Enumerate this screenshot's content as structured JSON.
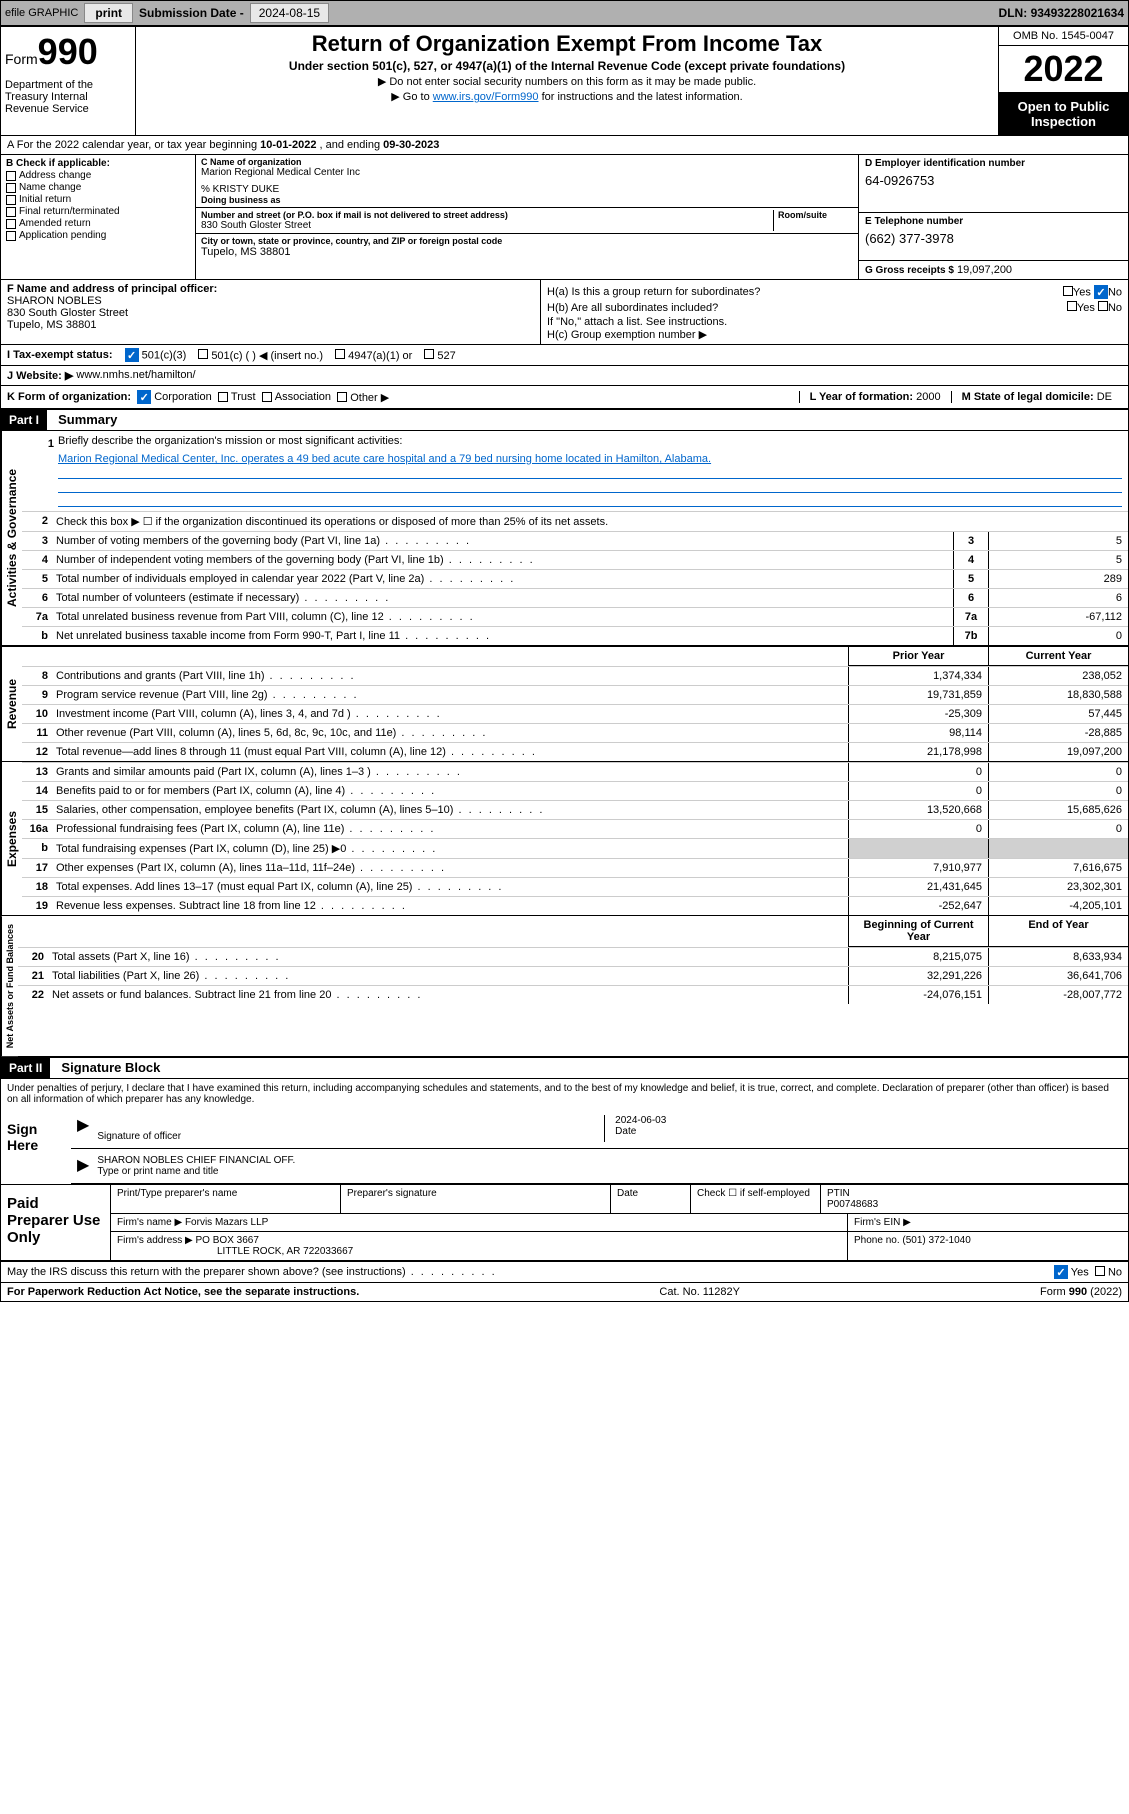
{
  "topbar": {
    "efile_label": "efile GRAPHIC",
    "print_btn": "print",
    "submission_label": "Submission Date -",
    "submission_date": "2024-08-15",
    "dln_label": "DLN:",
    "dln": "93493228021634"
  },
  "header": {
    "form_label": "Form",
    "form_num": "990",
    "dept": "Department of the Treasury Internal Revenue Service",
    "title": "Return of Organization Exempt From Income Tax",
    "subtitle": "Under section 501(c), 527, or 4947(a)(1) of the Internal Revenue Code (except private foundations)",
    "note1": "▶ Do not enter social security numbers on this form as it may be made public.",
    "note2_pre": "▶ Go to ",
    "note2_link": "www.irs.gov/Form990",
    "note2_post": " for instructions and the latest information.",
    "omb": "OMB No. 1545-0047",
    "year": "2022",
    "open_public": "Open to Public Inspection"
  },
  "row_a": {
    "text_pre": "A For the 2022 calendar year, or tax year beginning ",
    "begin": "10-01-2022",
    "mid": " , and ending ",
    "end": "09-30-2023"
  },
  "section_b": {
    "b_label": "B Check if applicable:",
    "checks": [
      "Address change",
      "Name change",
      "Initial return",
      "Final return/terminated",
      "Amended return",
      "Application pending"
    ],
    "c_label": "C Name of organization",
    "org_name": "Marion Regional Medical Center Inc",
    "care_of_label": "% KRISTY DUKE",
    "dba_label": "Doing business as",
    "addr_label": "Number and street (or P.O. box if mail is not delivered to street address)",
    "room_label": "Room/suite",
    "street": "830 South Gloster Street",
    "city_label": "City or town, state or province, country, and ZIP or foreign postal code",
    "city": "Tupelo, MS  38801",
    "d_label": "D Employer identification number",
    "ein": "64-0926753",
    "e_label": "E Telephone number",
    "phone": "(662) 377-3978",
    "g_label": "G Gross receipts $",
    "gross": "19,097,200"
  },
  "row_f": {
    "f_label": "F Name and address of principal officer:",
    "officer_name": "SHARON NOBLES",
    "officer_addr1": "830 South Gloster Street",
    "officer_addr2": "Tupelo, MS  38801",
    "ha_label": "H(a)  Is this a group return for subordinates?",
    "hb_label": "H(b)  Are all subordinates included?",
    "hb_note": "If \"No,\" attach a list. See instructions.",
    "hc_label": "H(c)  Group exemption number ▶",
    "yes": "Yes",
    "no": "No"
  },
  "row_i": {
    "label": "I  Tax-exempt status:",
    "opt1": "501(c)(3)",
    "opt2": "501(c) (  ) ◀ (insert no.)",
    "opt3": "4947(a)(1) or",
    "opt4": "527"
  },
  "row_j": {
    "label": "J  Website: ▶",
    "value": "www.nmhs.net/hamilton/"
  },
  "row_k": {
    "label": "K Form of organization:",
    "opts": [
      "Corporation",
      "Trust",
      "Association",
      "Other ▶"
    ],
    "l_label": "L Year of formation:",
    "l_val": "2000",
    "m_label": "M State of legal domicile:",
    "m_val": "DE"
  },
  "part1": {
    "header": "Part I",
    "title": "Summary",
    "line1_label": "Briefly describe the organization's mission or most significant activities:",
    "mission": "Marion Regional Medical Center, Inc. operates a 49 bed acute care hospital and a 79 bed nursing home located in Hamilton, Alabama.",
    "line2": "Check this box ▶ ☐ if the organization discontinued its operations or disposed of more than 25% of its net assets.",
    "governance_label": "Activities & Governance",
    "revenue_label": "Revenue",
    "expenses_label": "Expenses",
    "netassets_label": "Net Assets or Fund Balances",
    "prior_year": "Prior Year",
    "current_year": "Current Year",
    "begin_year": "Beginning of Current Year",
    "end_year": "End of Year",
    "lines_gov": [
      {
        "n": "3",
        "d": "Number of voting members of the governing body (Part VI, line 1a)",
        "box": "3",
        "v": "5"
      },
      {
        "n": "4",
        "d": "Number of independent voting members of the governing body (Part VI, line 1b)",
        "box": "4",
        "v": "5"
      },
      {
        "n": "5",
        "d": "Total number of individuals employed in calendar year 2022 (Part V, line 2a)",
        "box": "5",
        "v": "289"
      },
      {
        "n": "6",
        "d": "Total number of volunteers (estimate if necessary)",
        "box": "6",
        "v": "6"
      },
      {
        "n": "7a",
        "d": "Total unrelated business revenue from Part VIII, column (C), line 12",
        "box": "7a",
        "v": "-67,112"
      },
      {
        "n": "b",
        "d": "Net unrelated business taxable income from Form 990-T, Part I, line 11",
        "box": "7b",
        "v": "0"
      }
    ],
    "lines_rev": [
      {
        "n": "8",
        "d": "Contributions and grants (Part VIII, line 1h)",
        "p": "1,374,334",
        "c": "238,052"
      },
      {
        "n": "9",
        "d": "Program service revenue (Part VIII, line 2g)",
        "p": "19,731,859",
        "c": "18,830,588"
      },
      {
        "n": "10",
        "d": "Investment income (Part VIII, column (A), lines 3, 4, and 7d )",
        "p": "-25,309",
        "c": "57,445"
      },
      {
        "n": "11",
        "d": "Other revenue (Part VIII, column (A), lines 5, 6d, 8c, 9c, 10c, and 11e)",
        "p": "98,114",
        "c": "-28,885"
      },
      {
        "n": "12",
        "d": "Total revenue—add lines 8 through 11 (must equal Part VIII, column (A), line 12)",
        "p": "21,178,998",
        "c": "19,097,200"
      }
    ],
    "lines_exp": [
      {
        "n": "13",
        "d": "Grants and similar amounts paid (Part IX, column (A), lines 1–3 )",
        "p": "0",
        "c": "0"
      },
      {
        "n": "14",
        "d": "Benefits paid to or for members (Part IX, column (A), line 4)",
        "p": "0",
        "c": "0"
      },
      {
        "n": "15",
        "d": "Salaries, other compensation, employee benefits (Part IX, column (A), lines 5–10)",
        "p": "13,520,668",
        "c": "15,685,626"
      },
      {
        "n": "16a",
        "d": "Professional fundraising fees (Part IX, column (A), line 11e)",
        "p": "0",
        "c": "0"
      },
      {
        "n": "b",
        "d": "Total fundraising expenses (Part IX, column (D), line 25) ▶0",
        "p": "",
        "c": "",
        "shaded": true
      },
      {
        "n": "17",
        "d": "Other expenses (Part IX, column (A), lines 11a–11d, 11f–24e)",
        "p": "7,910,977",
        "c": "7,616,675"
      },
      {
        "n": "18",
        "d": "Total expenses. Add lines 13–17 (must equal Part IX, column (A), line 25)",
        "p": "21,431,645",
        "c": "23,302,301"
      },
      {
        "n": "19",
        "d": "Revenue less expenses. Subtract line 18 from line 12",
        "p": "-252,647",
        "c": "-4,205,101"
      }
    ],
    "lines_net": [
      {
        "n": "20",
        "d": "Total assets (Part X, line 16)",
        "p": "8,215,075",
        "c": "8,633,934"
      },
      {
        "n": "21",
        "d": "Total liabilities (Part X, line 26)",
        "p": "32,291,226",
        "c": "36,641,706"
      },
      {
        "n": "22",
        "d": "Net assets or fund balances. Subtract line 21 from line 20",
        "p": "-24,076,151",
        "c": "-28,007,772"
      }
    ]
  },
  "part2": {
    "header": "Part II",
    "title": "Signature Block",
    "declaration": "Under penalties of perjury, I declare that I have examined this return, including accompanying schedules and statements, and to the best of my knowledge and belief, it is true, correct, and complete. Declaration of preparer (other than officer) is based on all information of which preparer has any knowledge.",
    "sign_here": "Sign Here",
    "sig_officer": "Signature of officer",
    "sig_date_label": "Date",
    "sig_date": "2024-06-03",
    "officer_name": "SHARON NOBLES CHIEF FINANCIAL OFF.",
    "type_name": "Type or print name and title",
    "paid_label": "Paid Preparer Use Only",
    "prep_name_label": "Print/Type preparer's name",
    "prep_sig_label": "Preparer's signature",
    "date_label": "Date",
    "check_self": "Check ☐ if self-employed",
    "ptin_label": "PTIN",
    "ptin": "P00748683",
    "firm_name_label": "Firm's name    ▶",
    "firm_name": "Forvis Mazars LLP",
    "firm_ein_label": "Firm's EIN ▶",
    "firm_addr_label": "Firm's address ▶",
    "firm_addr1": "PO BOX 3667",
    "firm_addr2": "LITTLE ROCK, AR  722033667",
    "phone_label": "Phone no.",
    "phone": "(501) 372-1040",
    "discuss": "May the IRS discuss this return with the preparer shown above? (see instructions)",
    "yes": "Yes",
    "no": "No"
  },
  "footer": {
    "left": "For Paperwork Reduction Act Notice, see the separate instructions.",
    "mid": "Cat. No. 11282Y",
    "right_pre": "Form ",
    "right_bold": "990",
    "right_post": " (2022)"
  }
}
